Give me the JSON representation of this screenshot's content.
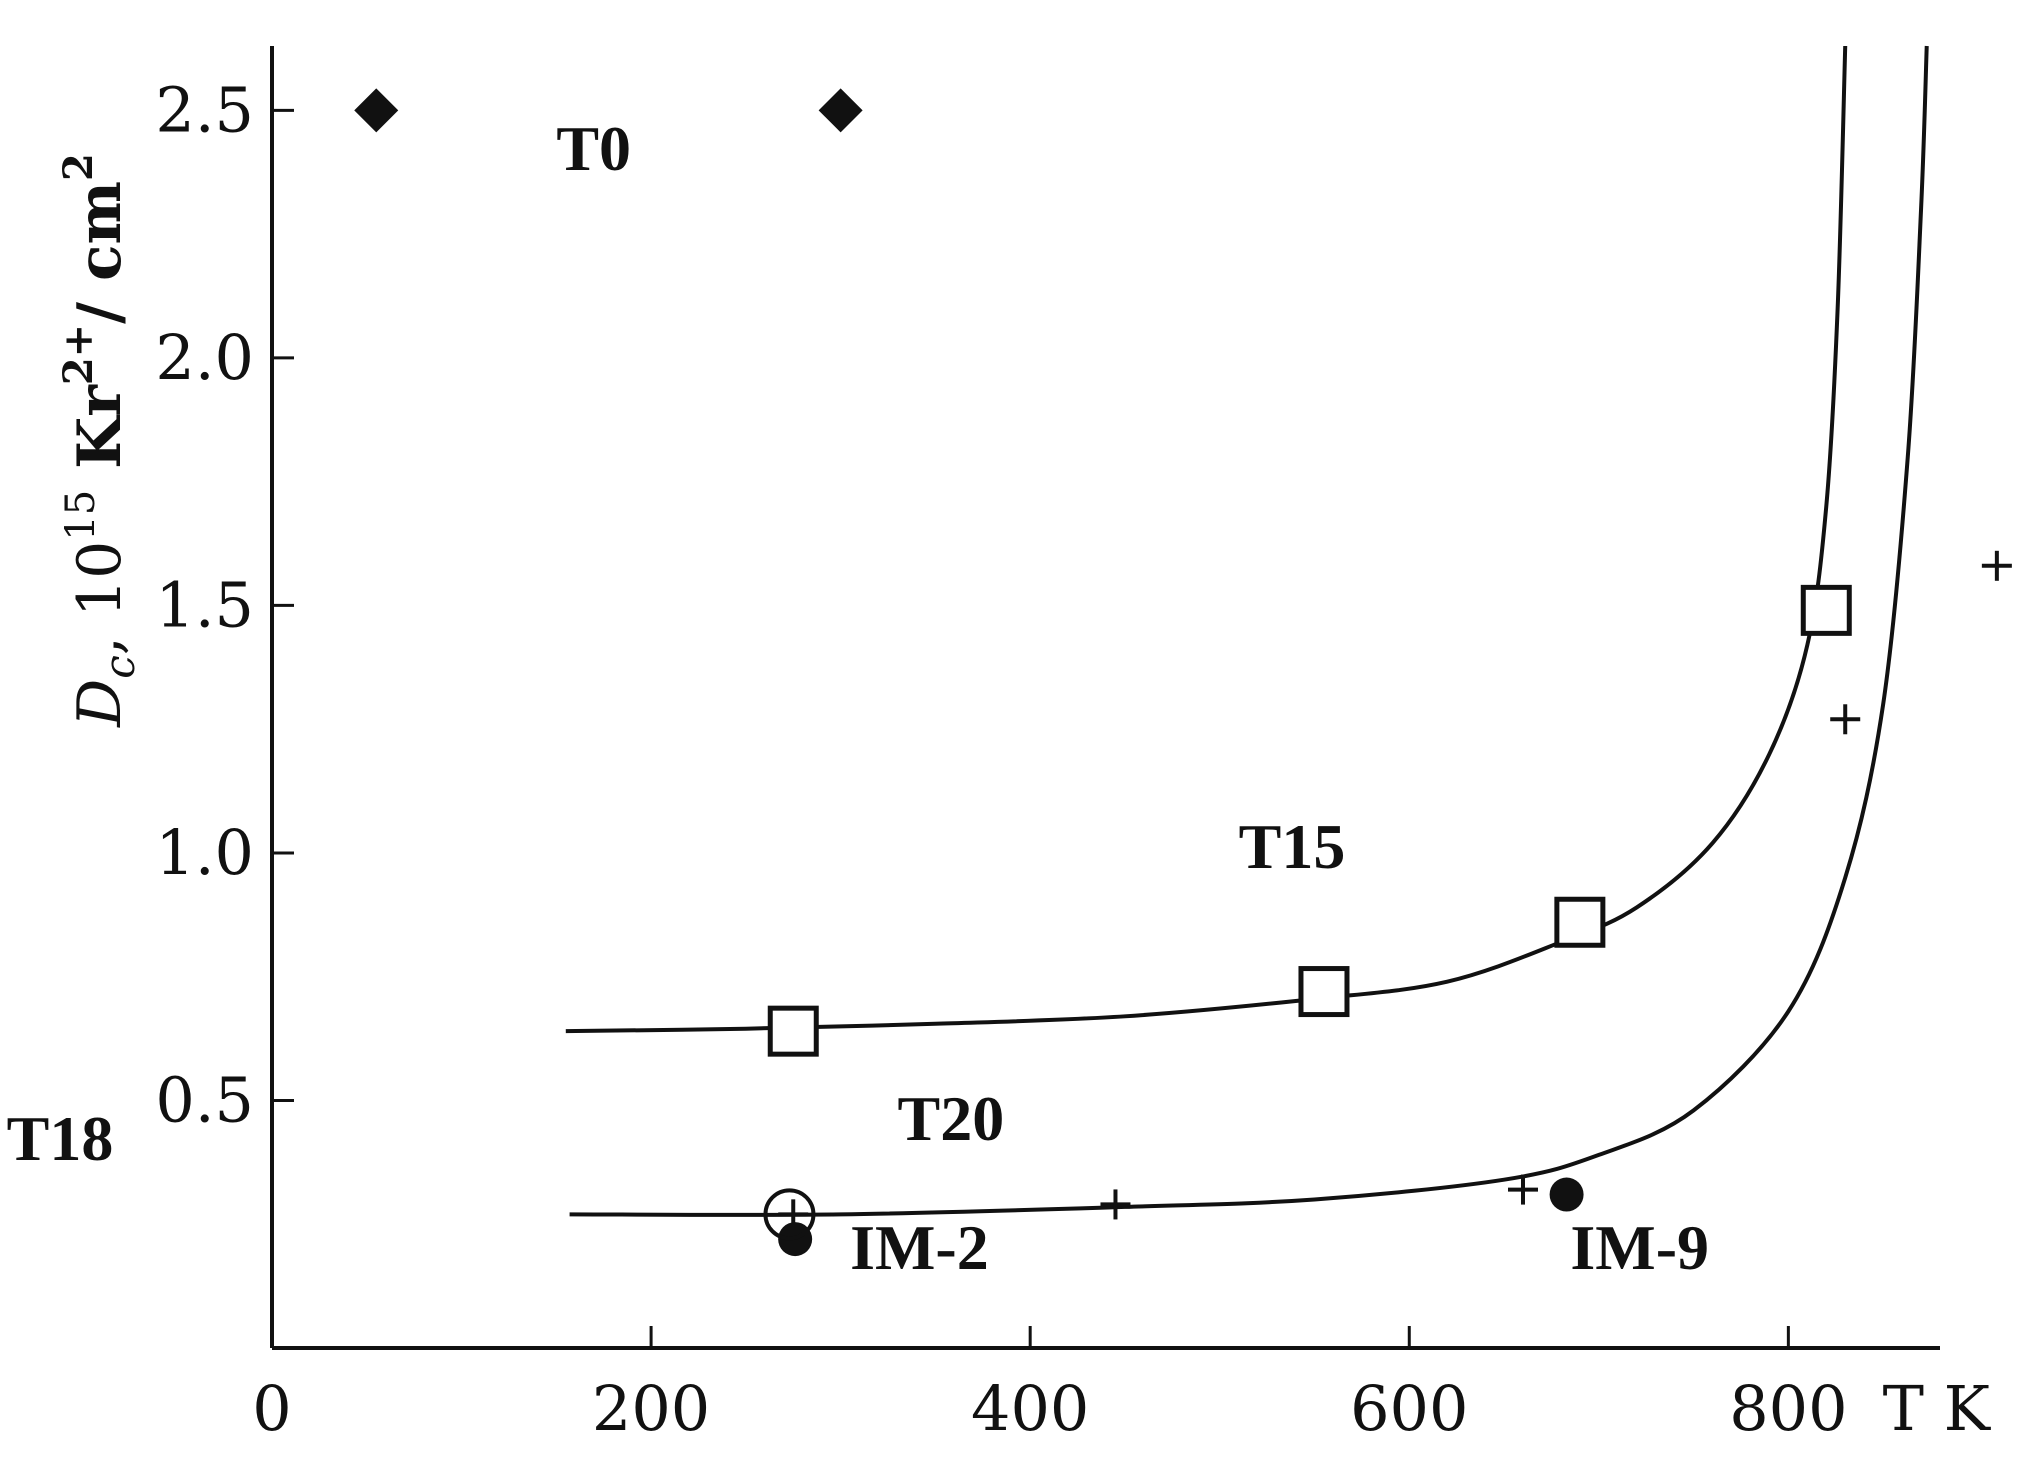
{
  "chart_data": {
    "type": "scatter",
    "xlabel": "T K",
    "ylabel": {
      "base": "D",
      "sub": "c",
      "mid": ", 10",
      "sup": "15",
      "bold": " Kr",
      "ion": "2+",
      "unit": "/ cm",
      "unit_sup": "2"
    },
    "xlim": [
      0,
      880
    ],
    "ylim": [
      0,
      2.63
    ],
    "x_ticks": [
      0,
      200,
      400,
      600,
      800
    ],
    "x_tick_labels": [
      "0",
      "200",
      "400",
      "600",
      "800"
    ],
    "y_ticks": [
      0.5,
      1.0,
      1.5,
      2.0,
      2.5
    ],
    "y_tick_labels": [
      "0.5",
      "1.0",
      "1.5",
      "2.0",
      "2.5"
    ],
    "grid": false,
    "series": [
      {
        "marker": "diamond-filled",
        "points": [
          [
            55,
            2.5
          ],
          [
            300,
            2.5
          ]
        ]
      },
      {
        "marker": "square-open",
        "points": [
          [
            275,
            0.64
          ],
          [
            555,
            0.72
          ],
          [
            690,
            0.86
          ],
          [
            820,
            1.49
          ]
        ]
      },
      {
        "marker": "plus",
        "points": [
          [
            275,
            0.27
          ],
          [
            445,
            0.29
          ],
          [
            660,
            0.32
          ],
          [
            830,
            1.27
          ],
          [
            910,
            1.58
          ]
        ]
      },
      {
        "marker": "circle-filled",
        "points": [
          [
            276,
            0.22
          ],
          [
            683,
            0.31
          ]
        ]
      },
      {
        "marker": "circle-open",
        "points": [
          [
            273,
            0.27
          ]
        ]
      }
    ],
    "curves": [
      {
        "name_ref": "T15",
        "points": [
          [
            155,
            0.64
          ],
          [
            250,
            0.645
          ],
          [
            350,
            0.655
          ],
          [
            450,
            0.67
          ],
          [
            550,
            0.705
          ],
          [
            620,
            0.74
          ],
          [
            680,
            0.82
          ],
          [
            720,
            0.89
          ],
          [
            760,
            1.02
          ],
          [
            790,
            1.2
          ],
          [
            810,
            1.42
          ],
          [
            820,
            1.7
          ],
          [
            826,
            2.1
          ],
          [
            830,
            2.63
          ]
        ]
      },
      {
        "name_ref": "T20",
        "points": [
          [
            157,
            0.27
          ],
          [
            300,
            0.27
          ],
          [
            450,
            0.285
          ],
          [
            550,
            0.3
          ],
          [
            650,
            0.34
          ],
          [
            700,
            0.39
          ],
          [
            750,
            0.48
          ],
          [
            800,
            0.68
          ],
          [
            830,
            0.95
          ],
          [
            850,
            1.3
          ],
          [
            863,
            1.8
          ],
          [
            870,
            2.3
          ],
          [
            873,
            2.63
          ]
        ]
      }
    ],
    "annotations": [
      {
        "text": "T0",
        "x": 150,
        "y": 2.38
      },
      {
        "text": "T15",
        "x": 510,
        "y": 0.97
      },
      {
        "text": "T18",
        "x": -140,
        "y": 0.38
      },
      {
        "text": "T20",
        "x": 330,
        "y": 0.42
      },
      {
        "text": "IM-2",
        "x": 305,
        "y": 0.16
      },
      {
        "text": "IM-9",
        "x": 685,
        "y": 0.16
      }
    ]
  }
}
